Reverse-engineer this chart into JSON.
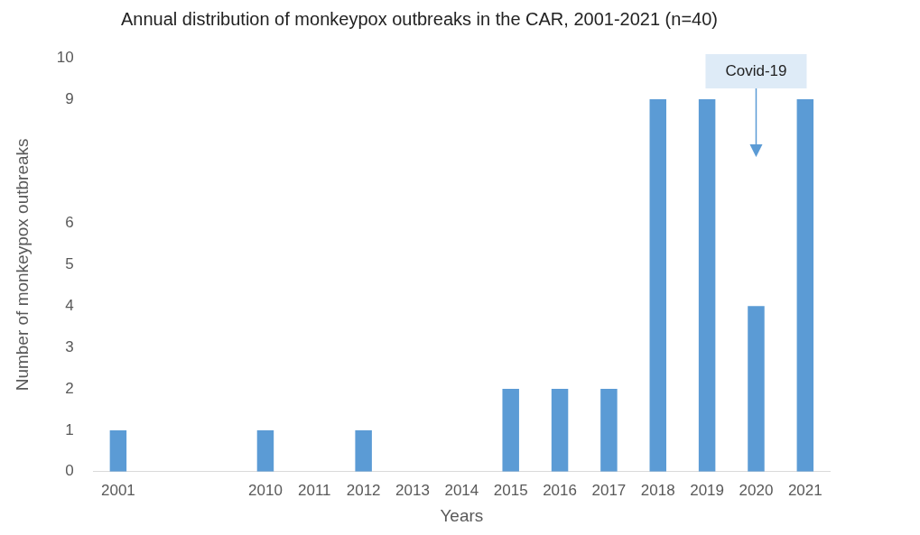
{
  "chart_data": {
    "type": "bar",
    "title": "Annual distribution of monkeypox outbreaks in the CAR, 2001-2021 (n=40)",
    "xlabel": "Years",
    "ylabel": "Number of monkeypox outbreaks",
    "categories": [
      "2001",
      null,
      null,
      "2010",
      "2011",
      "2012",
      "2013",
      "2014",
      "2015",
      "2016",
      "2017",
      "2018",
      "2019",
      "2020",
      "2021"
    ],
    "values": [
      1,
      0,
      0,
      1,
      0,
      1,
      0,
      0,
      2,
      2,
      2,
      9,
      9,
      4,
      9
    ],
    "color": "#5b9bd5",
    "ylim": [
      0,
      10
    ],
    "yticks": [
      0,
      1,
      2,
      3,
      4,
      5,
      6,
      9,
      10
    ],
    "grid": false,
    "annotations": [
      "Covid-19"
    ]
  }
}
